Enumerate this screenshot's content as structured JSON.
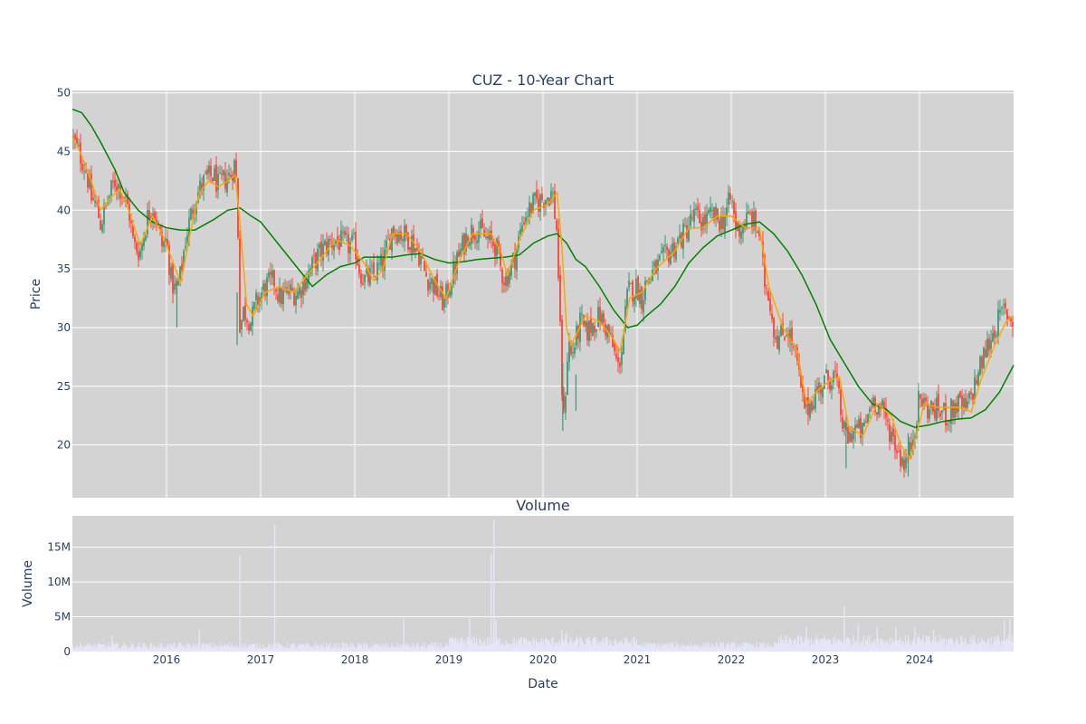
{
  "chart_data": [
    {
      "type": "candlestick",
      "title": "CUZ - 10-Year Chart",
      "ylabel": "Price",
      "xlabel": "",
      "xlim": [
        2015.0,
        2025.0
      ],
      "ylim": [
        15.5,
        50.2
      ],
      "yticks": [
        20,
        25,
        30,
        35,
        40,
        45,
        50
      ],
      "grid": true,
      "colors": {
        "up": "#3d9970",
        "down": "#ff4136",
        "ma_short": "#ffa500",
        "ma_long": "#008000",
        "plot_bg": "#d3d3d3"
      },
      "close_path": [
        [
          2015.0,
          46.2
        ],
        [
          2015.05,
          45.2
        ],
        [
          2015.1,
          44.4
        ],
        [
          2015.15,
          43.3
        ],
        [
          2015.2,
          41.0
        ],
        [
          2015.25,
          40.5
        ],
        [
          2015.3,
          38.8
        ],
        [
          2015.35,
          40.2
        ],
        [
          2015.45,
          42.5
        ],
        [
          2015.52,
          41.8
        ],
        [
          2015.6,
          40.0
        ],
        [
          2015.65,
          37.0
        ],
        [
          2015.72,
          36.5
        ],
        [
          2015.8,
          39.5
        ],
        [
          2015.85,
          40.5
        ],
        [
          2015.9,
          39.0
        ],
        [
          2015.95,
          37.0
        ],
        [
          2016.0,
          37.5
        ],
        [
          2016.05,
          34.0
        ],
        [
          2016.1,
          33.0
        ],
        [
          2016.15,
          34.5
        ],
        [
          2016.2,
          37.5
        ],
        [
          2016.3,
          41.0
        ],
        [
          2016.4,
          42.5
        ],
        [
          2016.5,
          43.0
        ],
        [
          2016.55,
          42.0
        ],
        [
          2016.6,
          42.5
        ],
        [
          2016.68,
          43.0
        ],
        [
          2016.72,
          44.0
        ],
        [
          2016.75,
          42.0
        ],
        [
          2016.78,
          30.0
        ],
        [
          2016.82,
          31.5
        ],
        [
          2016.9,
          30.5
        ],
        [
          2016.95,
          32.0
        ],
        [
          2017.05,
          33.5
        ],
        [
          2017.15,
          34.0
        ],
        [
          2017.2,
          32.5
        ],
        [
          2017.3,
          33.0
        ],
        [
          2017.4,
          33.0
        ],
        [
          2017.5,
          34.5
        ],
        [
          2017.6,
          36.0
        ],
        [
          2017.7,
          37.0
        ],
        [
          2017.8,
          37.5
        ],
        [
          2017.9,
          37.0
        ],
        [
          2018.0,
          37.0
        ],
        [
          2018.05,
          35.0
        ],
        [
          2018.1,
          34.0
        ],
        [
          2018.2,
          34.5
        ],
        [
          2018.3,
          35.5
        ],
        [
          2018.4,
          38.5
        ],
        [
          2018.5,
          38.0
        ],
        [
          2018.6,
          37.5
        ],
        [
          2018.7,
          36.0
        ],
        [
          2018.75,
          34.5
        ],
        [
          2018.85,
          33.5
        ],
        [
          2018.95,
          32.0
        ],
        [
          2019.0,
          33.5
        ],
        [
          2019.1,
          36.0
        ],
        [
          2019.2,
          38.0
        ],
        [
          2019.3,
          38.5
        ],
        [
          2019.4,
          37.5
        ],
        [
          2019.5,
          37.0
        ],
        [
          2019.55,
          35.0
        ],
        [
          2019.6,
          34.0
        ],
        [
          2019.7,
          36.0
        ],
        [
          2019.8,
          39.5
        ],
        [
          2019.9,
          40.5
        ],
        [
          2020.0,
          41.0
        ],
        [
          2020.1,
          41.5
        ],
        [
          2020.15,
          38.0
        ],
        [
          2020.2,
          25.0
        ],
        [
          2020.22,
          22.0
        ],
        [
          2020.27,
          29.0
        ],
        [
          2020.3,
          27.5
        ],
        [
          2020.4,
          30.5
        ],
        [
          2020.45,
          29.5
        ],
        [
          2020.5,
          30.0
        ],
        [
          2020.6,
          31.0
        ],
        [
          2020.7,
          29.5
        ],
        [
          2020.8,
          26.5
        ],
        [
          2020.85,
          29.0
        ],
        [
          2020.9,
          33.0
        ],
        [
          2021.0,
          33.5
        ],
        [
          2021.05,
          32.5
        ],
        [
          2021.1,
          34.0
        ],
        [
          2021.2,
          35.0
        ],
        [
          2021.3,
          36.0
        ],
        [
          2021.4,
          37.0
        ],
        [
          2021.5,
          38.0
        ],
        [
          2021.6,
          39.5
        ],
        [
          2021.7,
          39.0
        ],
        [
          2021.8,
          39.5
        ],
        [
          2021.9,
          39.0
        ],
        [
          2022.0,
          41.0
        ],
        [
          2022.05,
          38.5
        ],
        [
          2022.1,
          38.5
        ],
        [
          2022.2,
          39.5
        ],
        [
          2022.3,
          38.0
        ],
        [
          2022.35,
          34.0
        ],
        [
          2022.4,
          33.0
        ],
        [
          2022.45,
          30.0
        ],
        [
          2022.5,
          29.0
        ],
        [
          2022.6,
          30.0
        ],
        [
          2022.7,
          27.0
        ],
        [
          2022.75,
          24.0
        ],
        [
          2022.8,
          23.0
        ],
        [
          2022.9,
          24.5
        ],
        [
          2023.0,
          25.5
        ],
        [
          2023.1,
          26.0
        ],
        [
          2023.2,
          21.0
        ],
        [
          2023.25,
          20.5
        ],
        [
          2023.3,
          21.5
        ],
        [
          2023.4,
          21.0
        ],
        [
          2023.5,
          24.0
        ],
        [
          2023.6,
          23.0
        ],
        [
          2023.7,
          21.0
        ],
        [
          2023.8,
          19.0
        ],
        [
          2023.85,
          18.5
        ],
        [
          2023.9,
          19.5
        ],
        [
          2024.0,
          24.0
        ],
        [
          2024.1,
          23.0
        ],
        [
          2024.2,
          23.0
        ],
        [
          2024.3,
          22.5
        ],
        [
          2024.4,
          23.5
        ],
        [
          2024.5,
          23.0
        ],
        [
          2024.6,
          25.5
        ],
        [
          2024.7,
          28.0
        ],
        [
          2024.8,
          30.0
        ],
        [
          2024.9,
          31.5
        ],
        [
          2025.0,
          30.5
        ]
      ],
      "ma_short": [
        [
          2015.0,
          46.3
        ],
        [
          2015.08,
          45.0
        ],
        [
          2015.2,
          42.5
        ],
        [
          2015.3,
          40.0
        ],
        [
          2015.4,
          41.0
        ],
        [
          2015.5,
          41.8
        ],
        [
          2015.6,
          40.0
        ],
        [
          2015.72,
          37.0
        ],
        [
          2015.85,
          39.5
        ],
        [
          2015.95,
          38.0
        ],
        [
          2016.05,
          36.0
        ],
        [
          2016.15,
          33.8
        ],
        [
          2016.25,
          38.0
        ],
        [
          2016.35,
          41.5
        ],
        [
          2016.45,
          42.5
        ],
        [
          2016.55,
          42.0
        ],
        [
          2016.65,
          42.5
        ],
        [
          2016.73,
          43.0
        ],
        [
          2016.78,
          39.0
        ],
        [
          2016.85,
          32.0
        ],
        [
          2016.92,
          31.0
        ],
        [
          2017.05,
          33.0
        ],
        [
          2017.2,
          33.5
        ],
        [
          2017.35,
          33.0
        ],
        [
          2017.5,
          34.5
        ],
        [
          2017.65,
          36.0
        ],
        [
          2017.8,
          37.5
        ],
        [
          2017.95,
          37.0
        ],
        [
          2018.1,
          35.5
        ],
        [
          2018.2,
          34.0
        ],
        [
          2018.3,
          35.0
        ],
        [
          2018.4,
          38.0
        ],
        [
          2018.55,
          38.0
        ],
        [
          2018.7,
          36.5
        ],
        [
          2018.85,
          34.0
        ],
        [
          2018.97,
          32.5
        ],
        [
          2019.1,
          35.5
        ],
        [
          2019.25,
          38.0
        ],
        [
          2019.45,
          38.0
        ],
        [
          2019.55,
          36.5
        ],
        [
          2019.62,
          34.5
        ],
        [
          2019.75,
          37.5
        ],
        [
          2019.9,
          40.0
        ],
        [
          2020.05,
          40.5
        ],
        [
          2020.15,
          41.5
        ],
        [
          2020.2,
          37.0
        ],
        [
          2020.25,
          30.0
        ],
        [
          2020.3,
          28.5
        ],
        [
          2020.45,
          31.0
        ],
        [
          2020.6,
          30.5
        ],
        [
          2020.75,
          29.0
        ],
        [
          2020.82,
          28.0
        ],
        [
          2020.92,
          32.5
        ],
        [
          2021.05,
          33.0
        ],
        [
          2021.2,
          35.0
        ],
        [
          2021.4,
          36.5
        ],
        [
          2021.55,
          38.5
        ],
        [
          2021.7,
          38.5
        ],
        [
          2021.85,
          39.5
        ],
        [
          2022.0,
          39.5
        ],
        [
          2022.15,
          38.5
        ],
        [
          2022.3,
          38.5
        ],
        [
          2022.4,
          33.5
        ],
        [
          2022.55,
          30.0
        ],
        [
          2022.7,
          28.0
        ],
        [
          2022.8,
          23.5
        ],
        [
          2022.9,
          24.5
        ],
        [
          2023.05,
          25.5
        ],
        [
          2023.15,
          25.8
        ],
        [
          2023.25,
          21.5
        ],
        [
          2023.4,
          20.8
        ],
        [
          2023.55,
          23.5
        ],
        [
          2023.7,
          22.5
        ],
        [
          2023.8,
          20.0
        ],
        [
          2023.9,
          18.8
        ],
        [
          2024.05,
          23.5
        ],
        [
          2024.2,
          23.2
        ],
        [
          2024.45,
          23.2
        ],
        [
          2024.55,
          22.8
        ],
        [
          2024.65,
          25.5
        ],
        [
          2024.8,
          28.5
        ],
        [
          2024.92,
          30.5
        ],
        [
          2025.0,
          31.0
        ]
      ],
      "ma_long": [
        [
          2015.0,
          48.6
        ],
        [
          2015.1,
          48.3
        ],
        [
          2015.2,
          47.2
        ],
        [
          2015.3,
          45.8
        ],
        [
          2015.45,
          43.5
        ],
        [
          2015.55,
          41.5
        ],
        [
          2015.7,
          40.0
        ],
        [
          2015.85,
          39.0
        ],
        [
          2016.0,
          38.5
        ],
        [
          2016.15,
          38.3
        ],
        [
          2016.3,
          38.3
        ],
        [
          2016.5,
          39.2
        ],
        [
          2016.65,
          40.0
        ],
        [
          2016.78,
          40.2
        ],
        [
          2016.9,
          39.5
        ],
        [
          2017.0,
          39.0
        ],
        [
          2017.15,
          37.5
        ],
        [
          2017.3,
          36.0
        ],
        [
          2017.45,
          34.5
        ],
        [
          2017.55,
          33.5
        ],
        [
          2017.7,
          34.5
        ],
        [
          2017.85,
          35.2
        ],
        [
          2018.0,
          35.5
        ],
        [
          2018.1,
          36.0
        ],
        [
          2018.25,
          36.0
        ],
        [
          2018.4,
          36.0
        ],
        [
          2018.55,
          36.2
        ],
        [
          2018.7,
          36.3
        ],
        [
          2018.85,
          35.8
        ],
        [
          2019.0,
          35.5
        ],
        [
          2019.15,
          35.6
        ],
        [
          2019.3,
          35.8
        ],
        [
          2019.45,
          35.9
        ],
        [
          2019.6,
          36.0
        ],
        [
          2019.75,
          36.2
        ],
        [
          2019.9,
          37.2
        ],
        [
          2020.05,
          37.8
        ],
        [
          2020.15,
          38.0
        ],
        [
          2020.25,
          37.2
        ],
        [
          2020.35,
          35.8
        ],
        [
          2020.45,
          35.2
        ],
        [
          2020.6,
          33.5
        ],
        [
          2020.75,
          31.5
        ],
        [
          2020.9,
          30.0
        ],
        [
          2021.0,
          30.2
        ],
        [
          2021.1,
          31.0
        ],
        [
          2021.25,
          32.0
        ],
        [
          2021.4,
          33.5
        ],
        [
          2021.55,
          35.5
        ],
        [
          2021.7,
          36.8
        ],
        [
          2021.85,
          37.8
        ],
        [
          2022.0,
          38.3
        ],
        [
          2022.15,
          38.8
        ],
        [
          2022.3,
          39.0
        ],
        [
          2022.45,
          38.0
        ],
        [
          2022.6,
          36.5
        ],
        [
          2022.75,
          34.5
        ],
        [
          2022.9,
          32.0
        ],
        [
          2023.05,
          29.0
        ],
        [
          2023.2,
          27.0
        ],
        [
          2023.35,
          25.0
        ],
        [
          2023.5,
          23.5
        ],
        [
          2023.65,
          23.0
        ],
        [
          2023.8,
          22.0
        ],
        [
          2023.95,
          21.5
        ],
        [
          2024.1,
          21.7
        ],
        [
          2024.25,
          22.0
        ],
        [
          2024.4,
          22.2
        ],
        [
          2024.55,
          22.3
        ],
        [
          2024.7,
          23.0
        ],
        [
          2024.85,
          24.5
        ],
        [
          2025.0,
          26.8
        ]
      ]
    },
    {
      "type": "bar",
      "title": "Volume",
      "ylabel": "Volume",
      "xlabel": "Date",
      "xlim": [
        2015.0,
        2025.0
      ],
      "ylim": [
        0,
        19500000
      ],
      "yticks": [
        0,
        5000000,
        10000000,
        15000000
      ],
      "ytick_labels": [
        "0",
        "5M",
        "10M",
        "15M"
      ],
      "xticks": [
        2016,
        2017,
        2018,
        2019,
        2020,
        2021,
        2022,
        2023,
        2024
      ],
      "grid": true,
      "colors": {
        "bar": "#e6e6fa",
        "plot_bg": "#d3d3d3"
      },
      "spikes": [
        [
          2015.42,
          2300000
        ],
        [
          2016.35,
          3200000
        ],
        [
          2016.78,
          13800000
        ],
        [
          2017.15,
          18200000
        ],
        [
          2018.52,
          4800000
        ],
        [
          2019.22,
          5200000
        ],
        [
          2019.45,
          14000000
        ],
        [
          2019.48,
          19000000
        ],
        [
          2019.5,
          4500000
        ],
        [
          2020.2,
          3000000
        ],
        [
          2020.25,
          2800000
        ],
        [
          2022.8,
          3500000
        ],
        [
          2023.2,
          6500000
        ],
        [
          2023.35,
          4000000
        ],
        [
          2023.55,
          3500000
        ],
        [
          2023.75,
          3500000
        ],
        [
          2023.95,
          3500000
        ],
        [
          2024.15,
          3200000
        ],
        [
          2024.9,
          4500000
        ],
        [
          2024.96,
          4800000
        ]
      ]
    }
  ]
}
